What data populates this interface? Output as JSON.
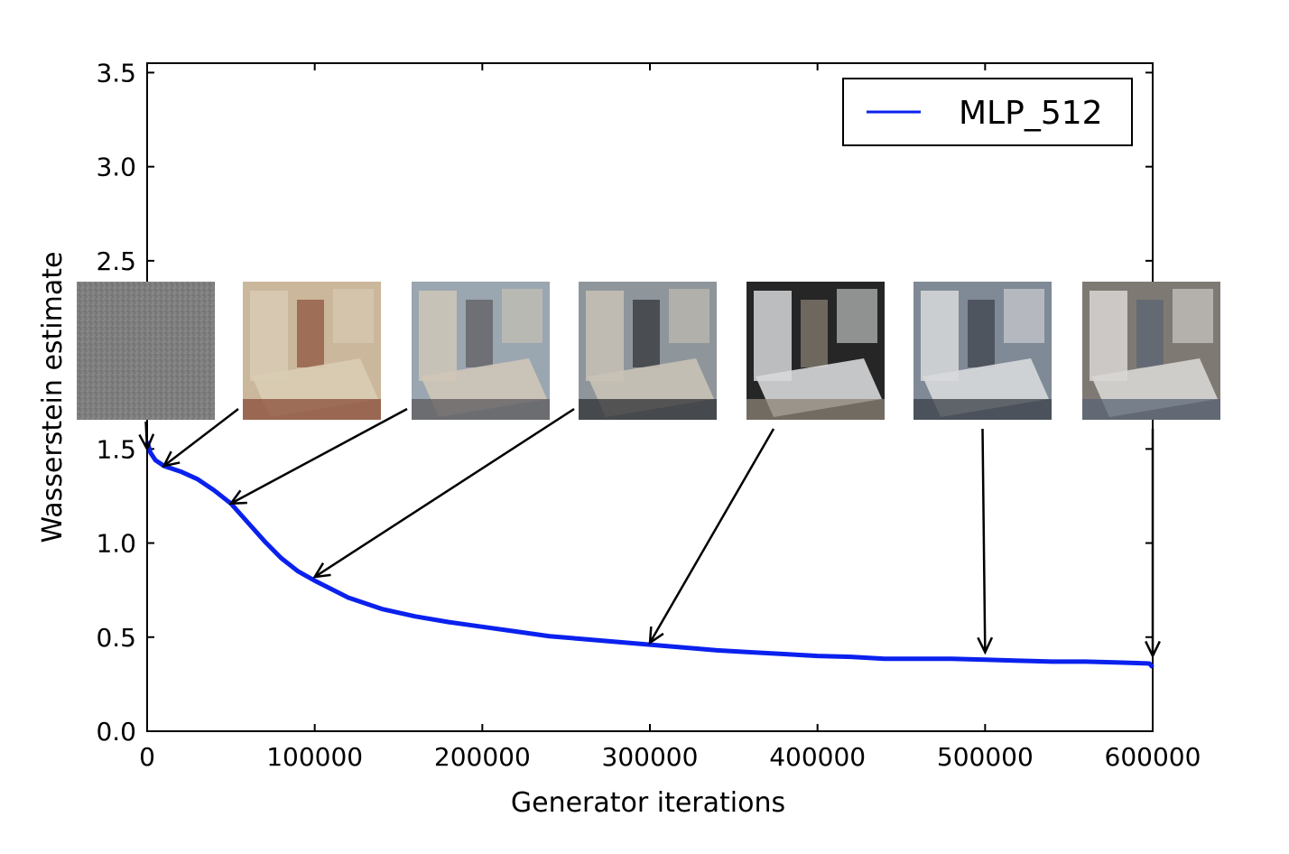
{
  "chart_data": {
    "type": "line",
    "xlabel": "Generator iterations",
    "ylabel": "Wasserstein estimate",
    "xlim": [
      0,
      600000
    ],
    "ylim": [
      0,
      3.55
    ],
    "xticks": [
      0,
      100000,
      200000,
      300000,
      400000,
      500000,
      600000
    ],
    "xtick_labels": [
      "0",
      "100000",
      "200000",
      "300000",
      "400000",
      "500000",
      "600000"
    ],
    "yticks": [
      0.0,
      0.5,
      1.0,
      1.5,
      2.5,
      3.0,
      3.5
    ],
    "ytick_labels": [
      "0.0",
      "0.5",
      "1.0",
      "1.5",
      "2.5",
      "3.0",
      "3.5"
    ],
    "grid": false,
    "legend_position": "top-right",
    "series": [
      {
        "name": "MLP_512",
        "color": "#0a21ee",
        "x": [
          0,
          2000,
          5000,
          10000,
          20000,
          30000,
          40000,
          50000,
          60000,
          70000,
          80000,
          90000,
          100000,
          120000,
          140000,
          160000,
          180000,
          200000,
          220000,
          240000,
          260000,
          280000,
          300000,
          320000,
          340000,
          360000,
          380000,
          400000,
          420000,
          440000,
          460000,
          480000,
          500000,
          520000,
          540000,
          560000,
          580000,
          598000,
          600000
        ],
        "y": [
          1.54,
          1.48,
          1.44,
          1.41,
          1.38,
          1.34,
          1.28,
          1.21,
          1.11,
          1.01,
          0.92,
          0.85,
          0.8,
          0.71,
          0.65,
          0.61,
          0.58,
          0.555,
          0.53,
          0.505,
          0.49,
          0.475,
          0.46,
          0.445,
          0.43,
          0.42,
          0.41,
          0.4,
          0.395,
          0.385,
          0.385,
          0.385,
          0.38,
          0.375,
          0.37,
          0.37,
          0.365,
          0.36,
          0.34
        ]
      }
    ],
    "sample_images": [
      {
        "name": "sample-iter-0",
        "colors": [
          "#7d7d7d",
          "#808080",
          "#7a7a7a"
        ]
      },
      {
        "name": "sample-iter-1",
        "colors": [
          "#cbb79c",
          "#8a4e3a",
          "#d9cdb5"
        ]
      },
      {
        "name": "sample-iter-2",
        "colors": [
          "#9aa6b0",
          "#5c5a5c",
          "#cfc7b8"
        ]
      },
      {
        "name": "sample-iter-3",
        "colors": [
          "#8e969c",
          "#2e2f33",
          "#c9c2b6"
        ]
      },
      {
        "name": "sample-iter-4",
        "colors": [
          "#262626",
          "#8b8376",
          "#d7d8d9"
        ]
      },
      {
        "name": "sample-iter-5",
        "colors": [
          "#7f8a96",
          "#3a3f47",
          "#d8d9db"
        ]
      },
      {
        "name": "sample-iter-6",
        "colors": [
          "#7e7a73",
          "#5a6474",
          "#d8d6d3"
        ]
      }
    ],
    "annotations": [
      {
        "from_image": 0,
        "to": [
          0,
          1.5
        ]
      },
      {
        "from_image": 1,
        "to": [
          10000,
          1.41
        ]
      },
      {
        "from_image": 2,
        "to": [
          50000,
          1.21
        ]
      },
      {
        "from_image": 3,
        "to": [
          100000,
          0.82
        ]
      },
      {
        "from_image": 4,
        "to": [
          300000,
          0.47
        ]
      },
      {
        "from_image": 5,
        "to": [
          500000,
          0.42
        ]
      },
      {
        "from_image": 6,
        "to": [
          600000,
          0.4
        ]
      }
    ]
  }
}
